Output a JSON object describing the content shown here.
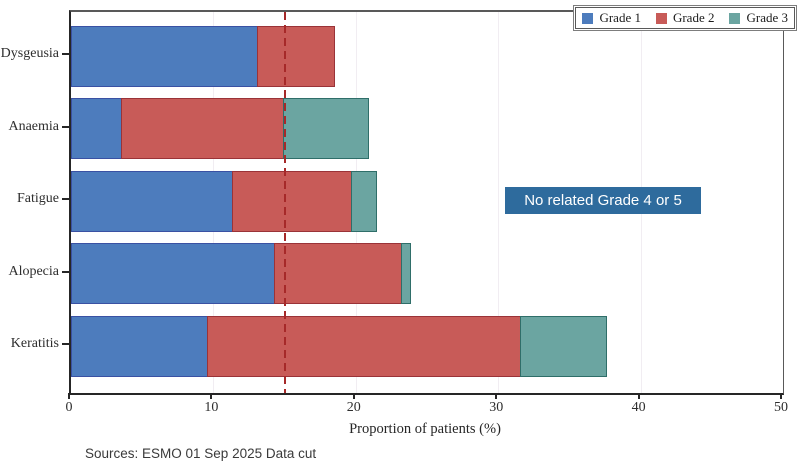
{
  "chart_data": {
    "type": "bar",
    "orientation": "horizontal",
    "stacked": true,
    "title": "",
    "xlabel": "Proportion of patients (%)",
    "ylabel": "",
    "xlim": [
      0,
      50
    ],
    "xticks": [
      0,
      10,
      20,
      30,
      40,
      50
    ],
    "grid": true,
    "categories": [
      "Dysgeusia",
      "Anaemia",
      "Fatigue",
      "Alopecia",
      "Keratitis"
    ],
    "series": [
      {
        "name": "Grade 1",
        "color": "#4d7cbd",
        "border_color": "#3a51a3",
        "values": [
          13.1,
          3.6,
          11.4,
          14.3,
          9.6
        ]
      },
      {
        "name": "Grade 2",
        "color": "#c85b58",
        "border_color": "#9a3338",
        "values": [
          5.5,
          11.4,
          8.4,
          9.0,
          22.1
        ]
      },
      {
        "name": "Grade 3",
        "color": "#6ba5a1",
        "border_color": "#2f6e69",
        "values": [
          0,
          6.1,
          1.8,
          0.7,
          6.1
        ]
      }
    ],
    "reference_line": {
      "x": 15,
      "color": "#a62929",
      "style": "dashed"
    },
    "legend": {
      "position": "top-right",
      "entries": [
        "Grade 1",
        "Grade 2",
        "Grade 3"
      ]
    }
  },
  "annotation": {
    "text": "No related Grade 4 or 5",
    "bg_color": "#2e6b9d",
    "text_color": "#ffffff"
  },
  "footer": {
    "source_text": "Sources: ESMO 01 Sep 2025 Data cut"
  }
}
